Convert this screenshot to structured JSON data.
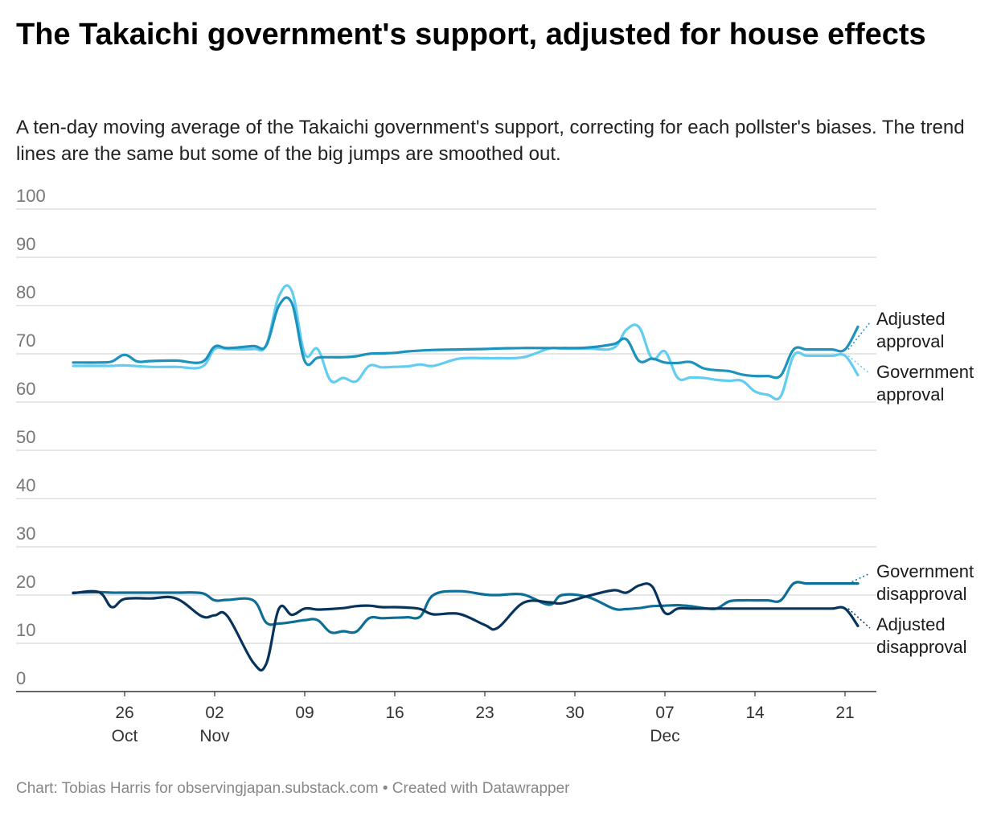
{
  "title": "The Takaichi government's support, adjusted for house effects",
  "subtitle": "A ten-day moving average of the Takaichi government's support, correcting for each pollster's biases. The trend lines are the same but some of the big jumps are smoothed out.",
  "footer": {
    "credit": "Chart: Tobias Harris for observingjapan.substack.com",
    "separator": "•",
    "tool": "Created with Datawrapper"
  },
  "chart_data": {
    "type": "line",
    "title": "The Takaichi government's support, adjusted for house effects",
    "xlabel": "",
    "ylabel": "",
    "ylim": [
      0,
      100
    ],
    "y_ticks": [
      "0",
      "10",
      "20",
      "30",
      "40",
      "50",
      "60",
      "70",
      "80",
      "90",
      "100"
    ],
    "x_unit": "day index, day 0 = Oct 22",
    "xlim": [
      0,
      61
    ],
    "x_ticks": [
      {
        "day": 4,
        "label": "26",
        "month": "Oct"
      },
      {
        "day": 11,
        "label": "02",
        "month": "Nov"
      },
      {
        "day": 18,
        "label": "09",
        "month": ""
      },
      {
        "day": 25,
        "label": "16",
        "month": ""
      },
      {
        "day": 32,
        "label": "23",
        "month": ""
      },
      {
        "day": 39,
        "label": "30",
        "month": ""
      },
      {
        "day": 46,
        "label": "07",
        "month": "Dec"
      },
      {
        "day": 53,
        "label": "14",
        "month": ""
      },
      {
        "day": 60,
        "label": "21",
        "month": ""
      }
    ],
    "grid": true,
    "series": [
      {
        "name": "Government approval",
        "label_lines": [
          "Government",
          "approval"
        ],
        "color": "#62cdf0",
        "x": [
          0,
          2,
          3,
          4,
          6,
          8,
          10,
          11,
          12,
          14,
          15,
          16,
          17,
          18,
          19,
          20,
          21,
          22,
          23,
          24,
          25,
          26,
          27,
          28,
          30,
          32,
          33,
          35,
          37,
          38,
          40,
          42,
          43,
          44,
          45,
          46,
          47,
          48,
          49,
          50,
          51,
          52,
          53,
          54,
          55,
          56,
          57,
          58,
          59,
          60,
          61
        ],
        "y": [
          67.5,
          67.5,
          67.5,
          67.6,
          67.3,
          67.3,
          67.3,
          71,
          71,
          71,
          71.8,
          82,
          83,
          70,
          71,
          64.5,
          65,
          64.3,
          67.5,
          67.2,
          67.3,
          67.4,
          67.8,
          67.5,
          69,
          69.1,
          69.1,
          69.3,
          71.1,
          71.1,
          71.1,
          71.2,
          75,
          75.5,
          69,
          70.5,
          65,
          65.1,
          65,
          64.6,
          64.4,
          64.4,
          62.2,
          61.5,
          61.2,
          69.6,
          69.6,
          69.6,
          69.6,
          69.6,
          65.6
        ]
      },
      {
        "name": "Adjusted approval",
        "label_lines": [
          "Adjusted",
          "approval"
        ],
        "color": "#1b93bd",
        "x": [
          0,
          2,
          3,
          4,
          5,
          6,
          8,
          10,
          11,
          12,
          14,
          15,
          16,
          17,
          18,
          19,
          20,
          21,
          22,
          23,
          24,
          25,
          26,
          28,
          30,
          32,
          33,
          35,
          37,
          38,
          40,
          42,
          43,
          44,
          45,
          46,
          47,
          48,
          49,
          50,
          51,
          52,
          53,
          54,
          55,
          56,
          57,
          58,
          59,
          60,
          61
        ],
        "y": [
          68.2,
          68.2,
          68.4,
          69.8,
          68.4,
          68.5,
          68.6,
          68.3,
          71.5,
          71.2,
          71.6,
          71.7,
          80,
          80.5,
          68.5,
          69.2,
          69.3,
          69.3,
          69.5,
          70,
          70.1,
          70.2,
          70.5,
          70.8,
          70.9,
          71,
          71.1,
          71.2,
          71.2,
          71.2,
          71.3,
          72,
          73,
          68.5,
          69,
          68.2,
          68.1,
          68.3,
          67,
          66.6,
          66.4,
          65.7,
          65.4,
          65.4,
          65.5,
          70.9,
          70.9,
          70.9,
          70.9,
          70.9,
          75.6
        ]
      },
      {
        "name": "Government disapproval",
        "label_lines": [
          "Government",
          "disapproval"
        ],
        "color": "#0e6e96",
        "x": [
          0,
          2,
          3,
          4,
          6,
          8,
          10,
          11,
          12,
          14,
          15,
          16,
          17,
          18,
          19,
          20,
          21,
          22,
          23,
          24,
          25,
          26,
          27,
          28,
          30,
          32,
          33,
          35,
          37,
          38,
          40,
          42,
          43,
          44,
          45,
          46,
          47,
          48,
          49,
          50,
          51,
          52,
          53,
          54,
          55,
          56,
          57,
          58,
          59,
          60,
          61
        ],
        "y": [
          20.5,
          20.6,
          20.5,
          20.5,
          20.5,
          20.5,
          20.4,
          18.9,
          19,
          18.9,
          14.3,
          14.1,
          14.4,
          14.8,
          14.8,
          12.3,
          12.5,
          12.4,
          15.2,
          15.2,
          15.3,
          15.4,
          15.6,
          20,
          20.8,
          20.1,
          20,
          20.1,
          18,
          20,
          19.6,
          17.2,
          17.1,
          17.3,
          17.7,
          17.8,
          17.9,
          17.7,
          17.3,
          17.2,
          18.7,
          18.9,
          18.9,
          18.9,
          18.9,
          22.4,
          22.4,
          22.4,
          22.4,
          22.4,
          22.4
        ]
      },
      {
        "name": "Adjusted disapproval",
        "label_lines": [
          "Adjusted",
          "disapproval"
        ],
        "color": "#08345c",
        "x": [
          0,
          2,
          3,
          4,
          6,
          8,
          10,
          11,
          12,
          14,
          15,
          16,
          17,
          18,
          19,
          20,
          21,
          22,
          23,
          24,
          25,
          26,
          27,
          28,
          30,
          32,
          33,
          35,
          37,
          38,
          40,
          42,
          43,
          44,
          45,
          46,
          47,
          48,
          49,
          50,
          51,
          52,
          53,
          54,
          55,
          56,
          57,
          58,
          59,
          60,
          61
        ],
        "y": [
          20.4,
          20.6,
          17.5,
          19.2,
          19.3,
          19.3,
          15.6,
          15.8,
          15.6,
          6,
          5.7,
          17.2,
          15.9,
          17.2,
          17,
          17.1,
          17.3,
          17.7,
          17.8,
          17.5,
          17.5,
          17.4,
          17.1,
          16,
          16.1,
          13.8,
          13.2,
          18.4,
          18.5,
          18.3,
          19.8,
          21,
          20.5,
          22,
          21.8,
          16.3,
          17.2,
          17.2,
          17.2,
          17.2,
          17.2,
          17.2,
          17.2,
          17.2,
          17.2,
          17.2,
          17.2,
          17.2,
          17.2,
          17.2,
          13.6
        ]
      }
    ]
  }
}
